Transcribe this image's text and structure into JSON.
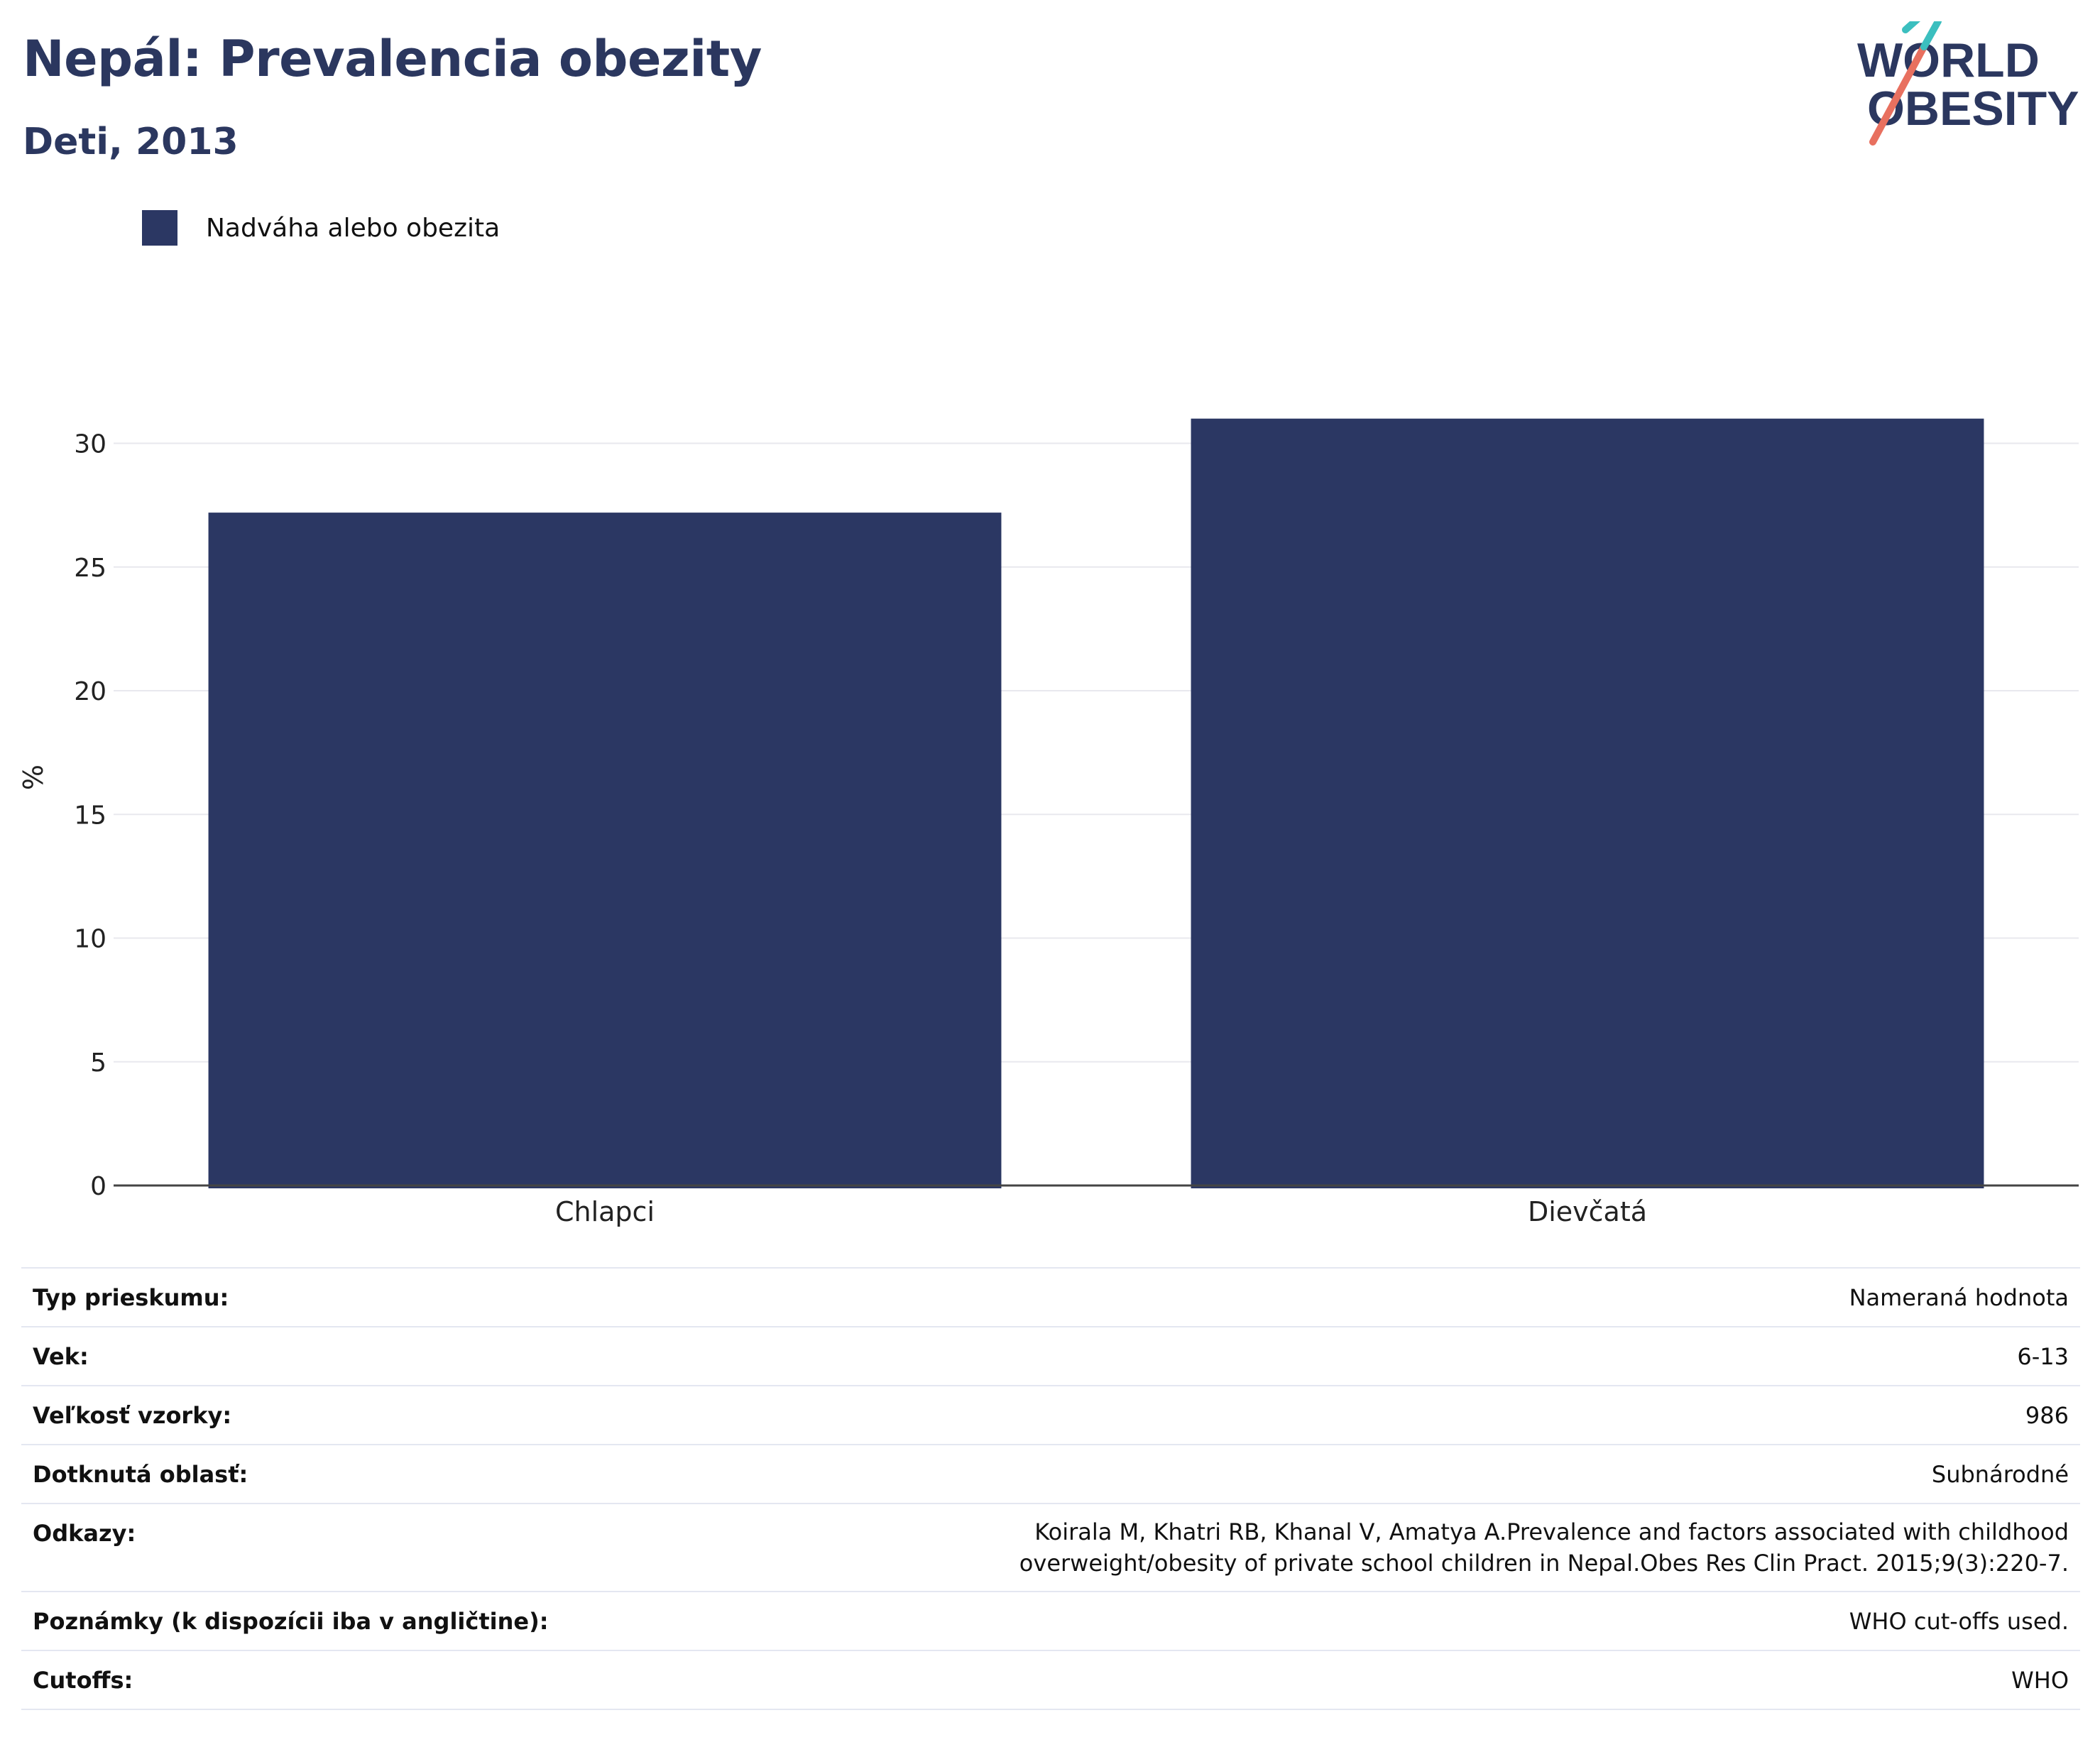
{
  "header": {
    "title": "Nepál: Prevalencia obezity",
    "subtitle": "Deti, 2013",
    "logo_line1": "WORLD",
    "logo_line2": "OBESITY"
  },
  "colors": {
    "bar": "#2b3763",
    "title": "#2b375f",
    "logo_teal": "#3bbfbf",
    "logo_coral": "#e8705f",
    "grid": "#e8e8ee"
  },
  "chart_data": {
    "type": "bar",
    "categories": [
      "Chlapci",
      "Dievčatá"
    ],
    "series": [
      {
        "name": "Nadváha alebo obezita",
        "values": [
          27.2,
          31.0
        ]
      }
    ],
    "title": "",
    "xlabel": "",
    "ylabel": "%",
    "ylim": [
      0,
      33
    ],
    "yticks": [
      0,
      5,
      10,
      15,
      20,
      25,
      30
    ],
    "grid": true,
    "legend": "top-left"
  },
  "details": [
    {
      "label": "Typ prieskumu:",
      "value": "Nameraná hodnota"
    },
    {
      "label": "Vek:",
      "value": "6-13"
    },
    {
      "label": "Veľkosť vzorky:",
      "value": "986"
    },
    {
      "label": "Dotknutá oblasť:",
      "value": "Subnárodné"
    },
    {
      "label": "Odkazy:",
      "value": "Koirala M, Khatri RB, Khanal V, Amatya A.Prevalence and factors associated with childhood overweight/obesity of private school children in Nepal.Obes Res Clin Pract. 2015;9(3):220-7."
    },
    {
      "label": "Poznámky (k dispozícii iba v angličtine):",
      "value": "WHO cut-offs used."
    },
    {
      "label": "Cutoffs:",
      "value": "WHO"
    }
  ]
}
